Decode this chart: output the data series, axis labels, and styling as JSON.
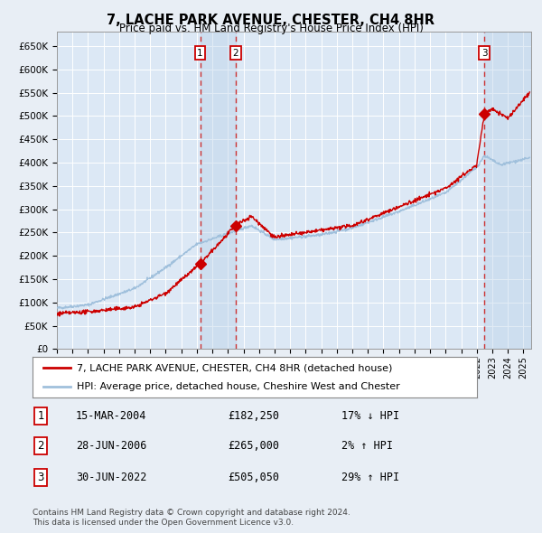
{
  "title": "7, LACHE PARK AVENUE, CHESTER, CH4 8HR",
  "subtitle": "Price paid vs. HM Land Registry's House Price Index (HPI)",
  "bg_color": "#e8eef5",
  "plot_bg_color": "#dce8f5",
  "grid_color": "#ffffff",
  "red_line_color": "#cc0000",
  "blue_line_color": "#a0c0dc",
  "sale_marker_color": "#cc0000",
  "yticks": [
    0,
    50000,
    100000,
    150000,
    200000,
    250000,
    300000,
    350000,
    400000,
    450000,
    500000,
    550000,
    600000,
    650000
  ],
  "ytick_labels": [
    "£0",
    "£50K",
    "£100K",
    "£150K",
    "£200K",
    "£250K",
    "£300K",
    "£350K",
    "£400K",
    "£450K",
    "£500K",
    "£550K",
    "£600K",
    "£650K"
  ],
  "xmin": 1995.0,
  "xmax": 2025.5,
  "ymin": 0,
  "ymax": 680000,
  "sale1_x": 2004.21,
  "sale1_y": 182250,
  "sale1_label": "1",
  "sale2_x": 2006.49,
  "sale2_y": 265000,
  "sale2_label": "2",
  "sale3_x": 2022.49,
  "sale3_y": 505050,
  "sale3_label": "3",
  "shade1_xmin": 2004.21,
  "shade1_xmax": 2006.49,
  "shade2_xmin": 2022.49,
  "shade2_xmax": 2025.5,
  "legend_line1": "7, LACHE PARK AVENUE, CHESTER, CH4 8HR (detached house)",
  "legend_line2": "HPI: Average price, detached house, Cheshire West and Chester",
  "table_rows": [
    {
      "num": "1",
      "date": "15-MAR-2004",
      "price": "£182,250",
      "change": "17% ↓ HPI"
    },
    {
      "num": "2",
      "date": "28-JUN-2006",
      "price": "£265,000",
      "change": "2% ↑ HPI"
    },
    {
      "num": "3",
      "date": "30-JUN-2022",
      "price": "£505,050",
      "change": "29% ↑ HPI"
    }
  ],
  "footer": "Contains HM Land Registry data © Crown copyright and database right 2024.\nThis data is licensed under the Open Government Licence v3.0.",
  "xtick_years": [
    1995,
    1996,
    1997,
    1998,
    1999,
    2000,
    2001,
    2002,
    2003,
    2004,
    2005,
    2006,
    2007,
    2008,
    2009,
    2010,
    2011,
    2012,
    2013,
    2014,
    2015,
    2016,
    2017,
    2018,
    2019,
    2020,
    2021,
    2022,
    2023,
    2024,
    2025
  ]
}
